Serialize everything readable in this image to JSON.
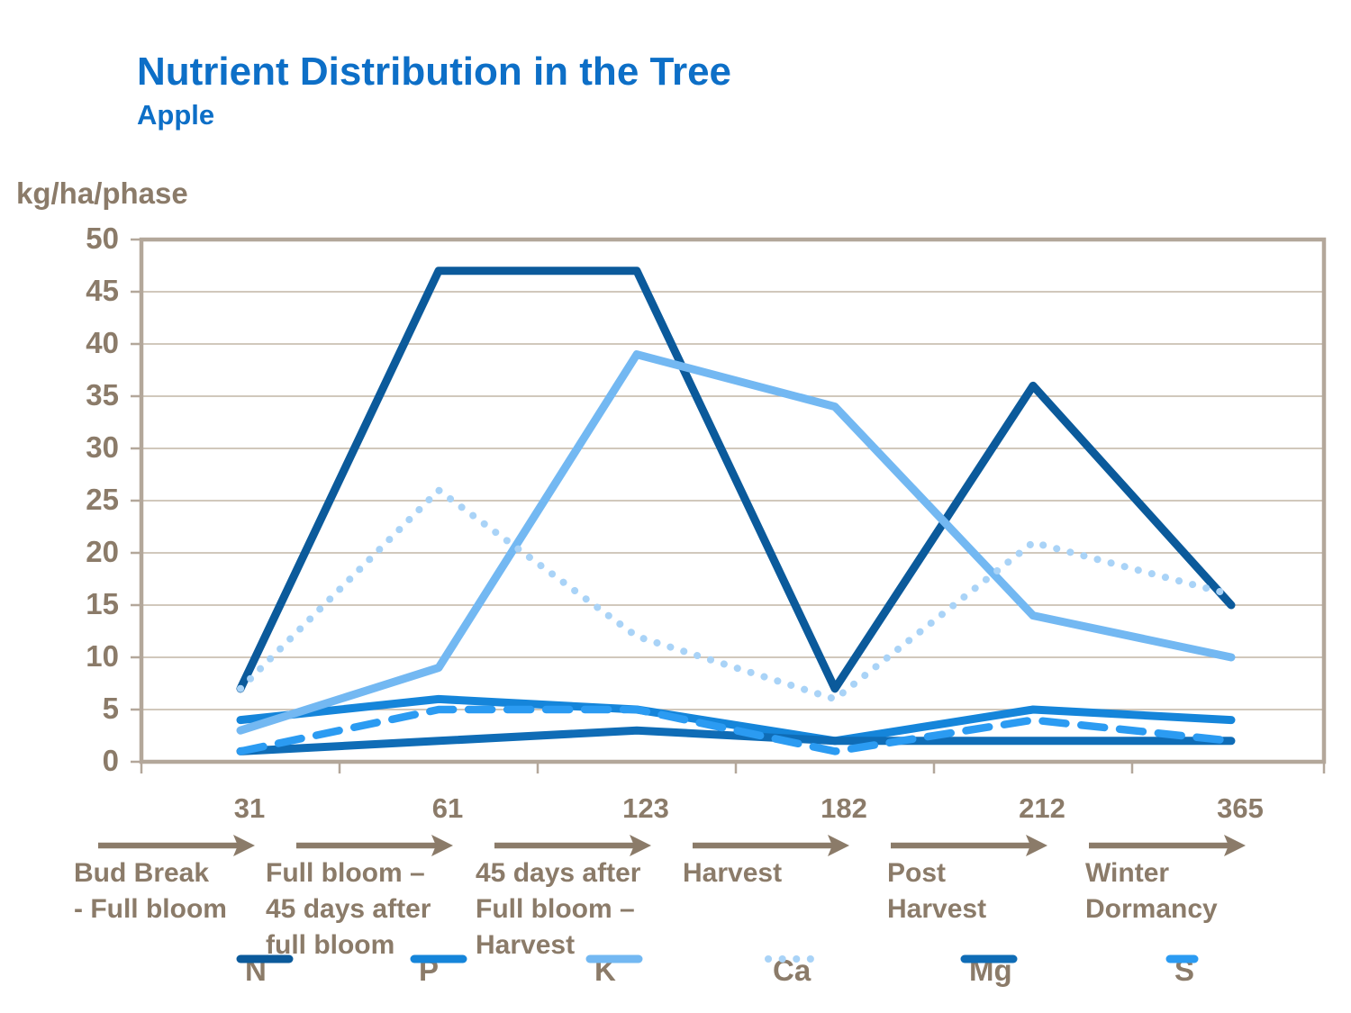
{
  "header": {
    "title": "Nutrient Distribution in the Tree",
    "subtitle": "Apple"
  },
  "chart_data": {
    "type": "line",
    "title": "Nutrient Distribution in the Tree",
    "subtitle": "Apple",
    "ylabel": "kg/ha/phase",
    "ylim": [
      0,
      50
    ],
    "ytick_step": 5,
    "grid": true,
    "legend_position": "bottom",
    "categories": [
      "31",
      "61",
      "123",
      "182",
      "212",
      "365"
    ],
    "x_phases": [
      {
        "number": "31",
        "lines": [
          "Bud Break",
          "- Full bloom"
        ]
      },
      {
        "number": "61",
        "lines": [
          "Full bloom –",
          "45 days after",
          "full bloom"
        ]
      },
      {
        "number": "123",
        "lines": [
          "45 days after",
          "Full bloom –",
          "Harvest"
        ]
      },
      {
        "number": "182",
        "lines": [
          "Harvest"
        ]
      },
      {
        "number": "212",
        "lines": [
          "Post",
          "Harvest"
        ]
      },
      {
        "number": "365",
        "lines": [
          "Winter",
          "Dormancy"
        ]
      }
    ],
    "series": [
      {
        "name": "N",
        "color": "#0b5a9b",
        "style": "solid",
        "values": [
          7,
          47,
          47,
          7,
          36,
          15
        ]
      },
      {
        "name": "P",
        "color": "#1585da",
        "style": "solid",
        "values": [
          4,
          6,
          5,
          2,
          5,
          4
        ]
      },
      {
        "name": "K",
        "color": "#73b8f2",
        "style": "solid",
        "values": [
          3,
          9,
          39,
          34,
          14,
          10
        ]
      },
      {
        "name": "Ca",
        "color": "#a9d3f7",
        "style": "dotted",
        "values": [
          7,
          26,
          12,
          6,
          21,
          16
        ]
      },
      {
        "name": "Mg",
        "color": "#0f6cb6",
        "style": "solid",
        "values": [
          1,
          2,
          3,
          2,
          2,
          2
        ]
      },
      {
        "name": "S",
        "color": "#2b9bf2",
        "style": "dashed",
        "values": [
          1,
          5,
          5,
          1,
          4,
          2
        ]
      }
    ],
    "colors": {
      "title_blue": "#0d6fc7",
      "axis_text": "#8b7b69",
      "grid_line": "#c2b5a5",
      "plot_border": "#b3a79a"
    }
  }
}
